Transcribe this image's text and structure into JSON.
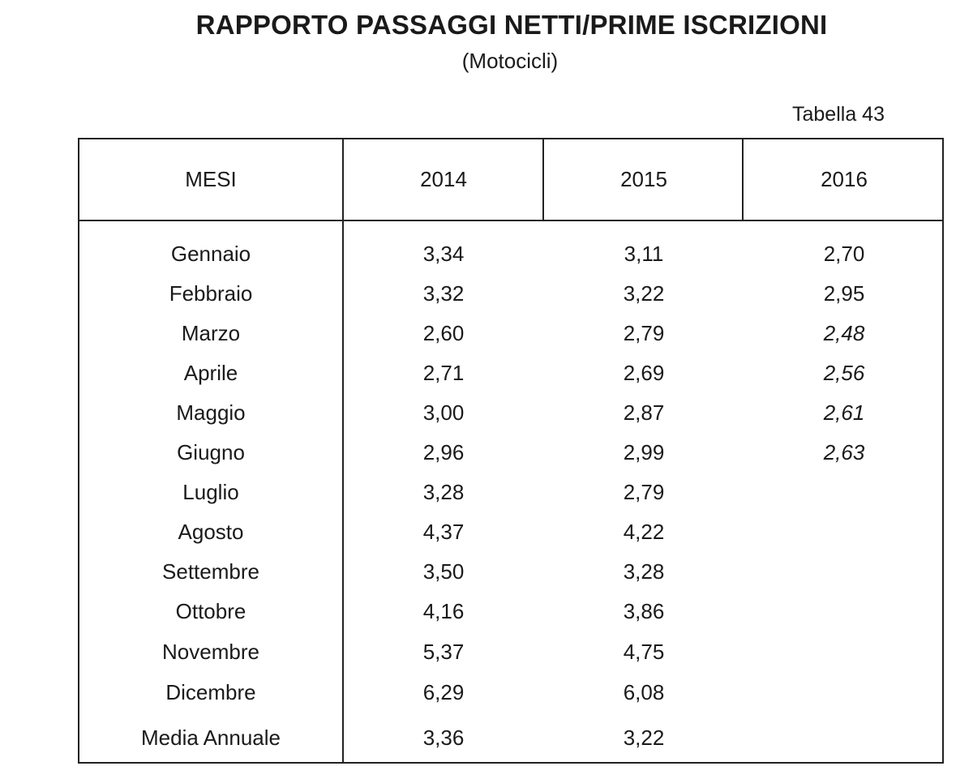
{
  "title": "RAPPORTO PASSAGGI NETTI/PRIME ISCRIZIONI",
  "subtitle": "(Motocicli)",
  "table_label": "Tabella 43",
  "headers": [
    "MESI",
    "2014",
    "2015",
    "2016"
  ],
  "rows": [
    {
      "mese": "Gennaio",
      "y2014": "3,34",
      "y2015": "3,11",
      "y2016": "2,70",
      "y2016_italic": false
    },
    {
      "mese": "Febbraio",
      "y2014": "3,32",
      "y2015": "3,22",
      "y2016": "2,95",
      "y2016_italic": false
    },
    {
      "mese": "Marzo",
      "y2014": "2,60",
      "y2015": "2,79",
      "y2016": "2,48",
      "y2016_italic": true
    },
    {
      "mese": "Aprile",
      "y2014": "2,71",
      "y2015": "2,69",
      "y2016": "2,56",
      "y2016_italic": true
    },
    {
      "mese": "Maggio",
      "y2014": "3,00",
      "y2015": "2,87",
      "y2016": "2,61",
      "y2016_italic": true
    },
    {
      "mese": "Giugno",
      "y2014": "2,96",
      "y2015": "2,99",
      "y2016": "2,63",
      "y2016_italic": true
    },
    {
      "mese": "Luglio",
      "y2014": "3,28",
      "y2015": "2,79",
      "y2016": "",
      "y2016_italic": false
    },
    {
      "mese": "Agosto",
      "y2014": "4,37",
      "y2015": "4,22",
      "y2016": "",
      "y2016_italic": false
    },
    {
      "mese": "Settembre",
      "y2014": "3,50",
      "y2015": "3,28",
      "y2016": "",
      "y2016_italic": false
    },
    {
      "mese": "Ottobre",
      "y2014": "4,16",
      "y2015": "3,86",
      "y2016": "",
      "y2016_italic": false
    },
    {
      "mese": "Novembre",
      "y2014": "5,37",
      "y2015": "4,75",
      "y2016": "",
      "y2016_italic": false
    },
    {
      "mese": "Dicembre",
      "y2014": "6,29",
      "y2015": "6,08",
      "y2016": "",
      "y2016_italic": false
    }
  ],
  "annual": {
    "mese": "Media Annuale",
    "y2014": "3,36",
    "y2015": "3,22",
    "y2016": ""
  }
}
